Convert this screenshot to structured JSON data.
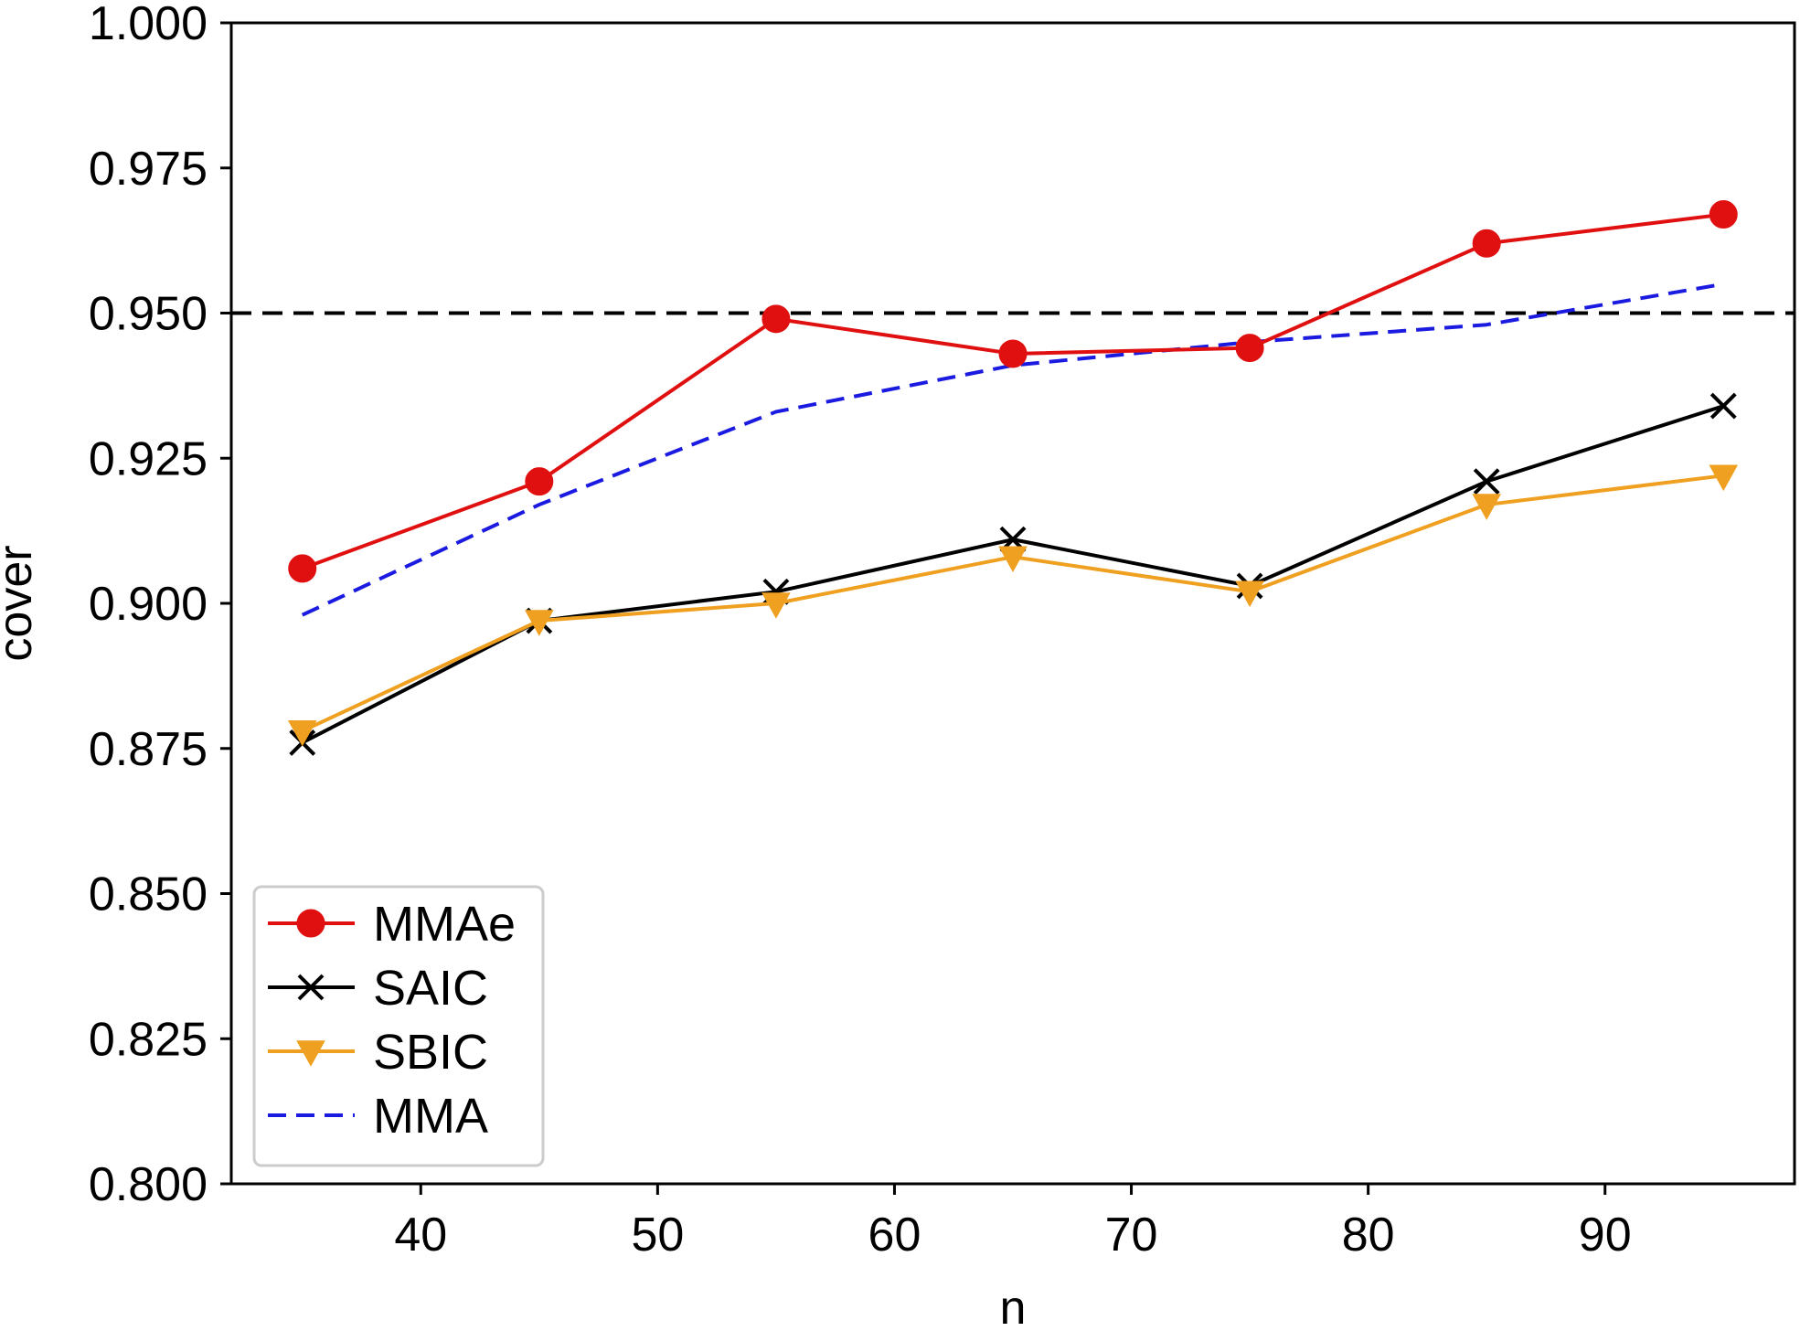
{
  "colors": {
    "MMAe": "#e01010",
    "SAIC": "#000000",
    "SBIC": "#f0a020",
    "MMA": "#1a1ae0",
    "reference": "#000000"
  },
  "chart_data": {
    "type": "line",
    "title": "",
    "xlabel": "n",
    "ylabel": "cover",
    "xlim": [
      32,
      98
    ],
    "ylim": [
      0.8,
      1.0
    ],
    "x_ticks": [
      40,
      50,
      60,
      70,
      80,
      90
    ],
    "x_tick_labels": [
      "40",
      "50",
      "60",
      "70",
      "80",
      "90"
    ],
    "y_ticks": [
      0.8,
      0.825,
      0.85,
      0.875,
      0.9,
      0.925,
      0.95,
      0.975,
      1.0
    ],
    "y_tick_labels": [
      "0.800",
      "0.825",
      "0.850",
      "0.875",
      "0.900",
      "0.925",
      "0.950",
      "0.975",
      "1.000"
    ],
    "x": [
      35,
      45,
      55,
      65,
      75,
      85,
      95
    ],
    "reference_line": {
      "y": 0.95,
      "style": "dashed"
    },
    "legend_position": "lower-left",
    "series": [
      {
        "name": "MMAe",
        "marker": "circle",
        "line": "solid",
        "values": [
          0.906,
          0.921,
          0.949,
          0.943,
          0.944,
          0.962,
          0.967
        ]
      },
      {
        "name": "SAIC",
        "marker": "x",
        "line": "solid",
        "values": [
          0.876,
          0.897,
          0.902,
          0.911,
          0.903,
          0.921,
          0.934
        ]
      },
      {
        "name": "SBIC",
        "marker": "triangle-down",
        "line": "solid",
        "values": [
          0.878,
          0.897,
          0.9,
          0.908,
          0.902,
          0.917,
          0.922
        ]
      },
      {
        "name": "MMA",
        "marker": "none",
        "line": "dashed",
        "values": [
          0.898,
          0.917,
          0.933,
          0.941,
          0.945,
          0.948,
          0.955
        ]
      }
    ]
  }
}
